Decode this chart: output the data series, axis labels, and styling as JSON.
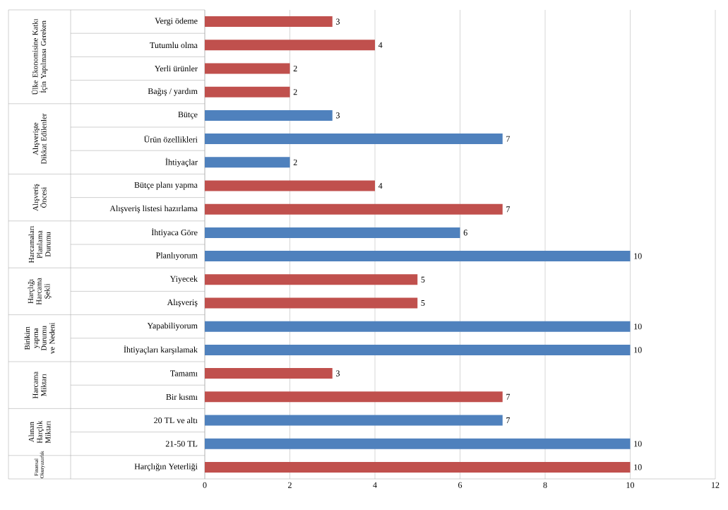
{
  "chart_data": {
    "type": "bar",
    "orientation": "horizontal",
    "categories": [
      "Vergi ödeme",
      "Tutumlu olma",
      "Yerli ürünler",
      "Bağış / yardım",
      "Bütçe",
      "Ürün özellikleri",
      "İhtiyaçlar",
      "Bütçe planı yapma",
      "Alışveriş listesi hazırlama",
      "İhtiyaca Göre",
      "Planlıyorum",
      "Yiyecek",
      "Alışveriş",
      "Yapabiliyorum",
      "İhtiyaçları karşılamak",
      "Tamamı",
      "Bir kısmı",
      "20 TL ve altı",
      "21-50 TL",
      "Harçlığın Yeterliği"
    ],
    "values": [
      3,
      4,
      2,
      2,
      3,
      7,
      2,
      4,
      7,
      6,
      10,
      5,
      5,
      10,
      10,
      3,
      7,
      7,
      10,
      10
    ],
    "colors": [
      "#c0504d",
      "#c0504d",
      "#c0504d",
      "#c0504d",
      "#4f81bd",
      "#4f81bd",
      "#4f81bd",
      "#c0504d",
      "#c0504d",
      "#4f81bd",
      "#4f81bd",
      "#c0504d",
      "#c0504d",
      "#4f81bd",
      "#4f81bd",
      "#c0504d",
      "#c0504d",
      "#4f81bd",
      "#4f81bd",
      "#c0504d"
    ],
    "annotations": [
      "Ülke Ekonomisine Katkı İçin Yapılması Gereken",
      "Alışverişte Dikkat Edilenler",
      "Alışveriş Öncesi",
      "Harcamaları Planlama Durumu",
      "Harçlığı Harcama Şekli",
      "Birikim yapma Durumu ve Nedeni",
      "Harcama Miktarı",
      "Alınan Harçlık Miktarı",
      "Finansal Okuryazarlık"
    ],
    "xlim": [
      0,
      12
    ],
    "xticks": [
      0,
      2,
      4,
      6,
      8,
      10,
      12
    ],
    "grid": "x",
    "data_labels": true
  }
}
